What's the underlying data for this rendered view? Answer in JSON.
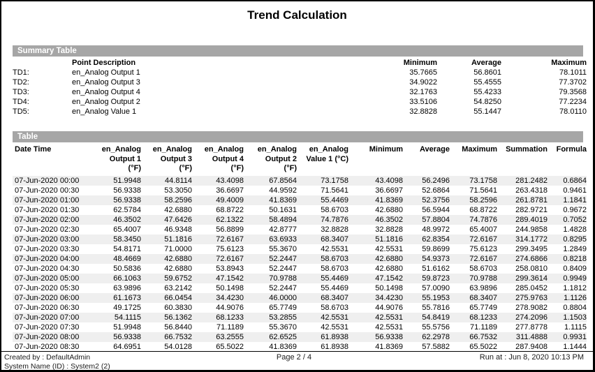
{
  "title": "Trend Calculation",
  "colors": {
    "section_bar_bg": "#a6a6a6",
    "section_bar_text": "#ffffff",
    "row_stripe": "#efefef",
    "page_border": "#000000"
  },
  "summary": {
    "section_label": "Summary Table",
    "headers": {
      "point_description": "Point Description",
      "minimum": "Minimum",
      "average": "Average",
      "maximum": "Maximum"
    },
    "rows": [
      {
        "label": "TD1:",
        "description": "en_Analog Output 1",
        "minimum": "35.7665",
        "average": "56.8601",
        "maximum": "78.1011"
      },
      {
        "label": "TD2:",
        "description": "en_Analog Output 3",
        "minimum": "34.9022",
        "average": "55.4555",
        "maximum": "77.3702"
      },
      {
        "label": "TD3:",
        "description": "en_Analog Output 4",
        "minimum": "32.1763",
        "average": "55.4233",
        "maximum": "79.3568"
      },
      {
        "label": "TD4:",
        "description": "en_Analog Output 2",
        "minimum": "33.5106",
        "average": "54.8250",
        "maximum": "77.2234"
      },
      {
        "label": "TD5:",
        "description": "en_Analog Value 1",
        "minimum": "32.8828",
        "average": "55.1447",
        "maximum": "78.0110"
      }
    ]
  },
  "table": {
    "section_label": "Table",
    "columns": [
      "Date Time",
      "en_Analog\nOutput 1\n(°F)",
      "en_Analog\nOutput 3\n(°F)",
      "en_Analog\nOutput 4\n(°F)",
      "en_Analog\nOutput 2\n(°F)",
      "en_Analog\nValue 1 (°C)",
      "Minimum",
      "Average",
      "Maximum",
      "Summation",
      "Formula"
    ],
    "rows": [
      [
        "07-Jun-2020 00:00",
        "51.9948",
        "44.8114",
        "43.4098",
        "67.8564",
        "73.1758",
        "43.4098",
        "56.2496",
        "73.1758",
        "281.2482",
        "0.6864"
      ],
      [
        "07-Jun-2020 00:30",
        "56.9338",
        "53.3050",
        "36.6697",
        "44.9592",
        "71.5641",
        "36.6697",
        "52.6864",
        "71.5641",
        "263.4318",
        "0.9461"
      ],
      [
        "07-Jun-2020 01:00",
        "56.9338",
        "58.2596",
        "49.4009",
        "41.8369",
        "55.4469",
        "41.8369",
        "52.3756",
        "58.2596",
        "261.8781",
        "1.1841"
      ],
      [
        "07-Jun-2020 01:30",
        "62.5784",
        "42.6880",
        "68.8722",
        "50.1631",
        "58.6703",
        "42.6880",
        "56.5944",
        "68.8722",
        "282.9721",
        "0.9672"
      ],
      [
        "07-Jun-2020 02:00",
        "46.3502",
        "47.6426",
        "62.1322",
        "58.4894",
        "74.7876",
        "46.3502",
        "57.8804",
        "74.7876",
        "289.4019",
        "0.7052"
      ],
      [
        "07-Jun-2020 02:30",
        "65.4007",
        "46.9348",
        "56.8899",
        "42.8777",
        "32.8828",
        "32.8828",
        "48.9972",
        "65.4007",
        "244.9858",
        "1.4828"
      ],
      [
        "07-Jun-2020 03:00",
        "58.3450",
        "51.1816",
        "72.6167",
        "63.6933",
        "68.3407",
        "51.1816",
        "62.8354",
        "72.6167",
        "314.1772",
        "0.8295"
      ],
      [
        "07-Jun-2020 03:30",
        "54.8171",
        "71.0000",
        "75.6123",
        "55.3670",
        "42.5531",
        "42.5531",
        "59.8699",
        "75.6123",
        "299.3495",
        "1.2849"
      ],
      [
        "07-Jun-2020 04:00",
        "48.4669",
        "42.6880",
        "72.6167",
        "52.2447",
        "58.6703",
        "42.6880",
        "54.9373",
        "72.6167",
        "274.6866",
        "0.8218"
      ],
      [
        "07-Jun-2020 04:30",
        "50.5836",
        "42.6880",
        "53.8943",
        "52.2447",
        "58.6703",
        "42.6880",
        "51.6162",
        "58.6703",
        "258.0810",
        "0.8409"
      ],
      [
        "07-Jun-2020 05:00",
        "66.1063",
        "59.6752",
        "47.1542",
        "70.9788",
        "55.4469",
        "47.1542",
        "59.8723",
        "70.9788",
        "299.3614",
        "0.9949"
      ],
      [
        "07-Jun-2020 05:30",
        "63.9896",
        "63.2142",
        "50.1498",
        "52.2447",
        "55.4469",
        "50.1498",
        "57.0090",
        "63.9896",
        "285.0452",
        "1.1812"
      ],
      [
        "07-Jun-2020 06:00",
        "61.1673",
        "66.0454",
        "34.4230",
        "46.0000",
        "68.3407",
        "34.4230",
        "55.1953",
        "68.3407",
        "275.9763",
        "1.1126"
      ],
      [
        "07-Jun-2020 06:30",
        "49.1725",
        "60.3830",
        "44.9076",
        "65.7749",
        "58.6703",
        "44.9076",
        "55.7816",
        "65.7749",
        "278.9082",
        "0.8804"
      ],
      [
        "07-Jun-2020 07:00",
        "54.1115",
        "56.1362",
        "68.1233",
        "53.2855",
        "42.5531",
        "42.5531",
        "54.8419",
        "68.1233",
        "274.2096",
        "1.1503"
      ],
      [
        "07-Jun-2020 07:30",
        "51.9948",
        "56.8440",
        "71.1189",
        "55.3670",
        "42.5531",
        "42.5531",
        "55.5756",
        "71.1189",
        "277.8778",
        "1.1115"
      ],
      [
        "07-Jun-2020 08:00",
        "56.9338",
        "66.7532",
        "63.2555",
        "62.6525",
        "61.8938",
        "56.9338",
        "62.2978",
        "66.7532",
        "311.4888",
        "0.9931"
      ],
      [
        "07-Jun-2020 08:30",
        "64.6951",
        "54.0128",
        "65.5022",
        "41.8369",
        "61.8938",
        "41.8369",
        "57.5882",
        "65.5022",
        "287.9408",
        "1.1444"
      ]
    ]
  },
  "footer": {
    "created_by": "Created by : DefaultAdmin",
    "system_name": "System Name (ID) : System2 (2)",
    "page": "Page  2 / 4",
    "run_at": "Run at : Jun 8, 2020 10:13 PM"
  }
}
